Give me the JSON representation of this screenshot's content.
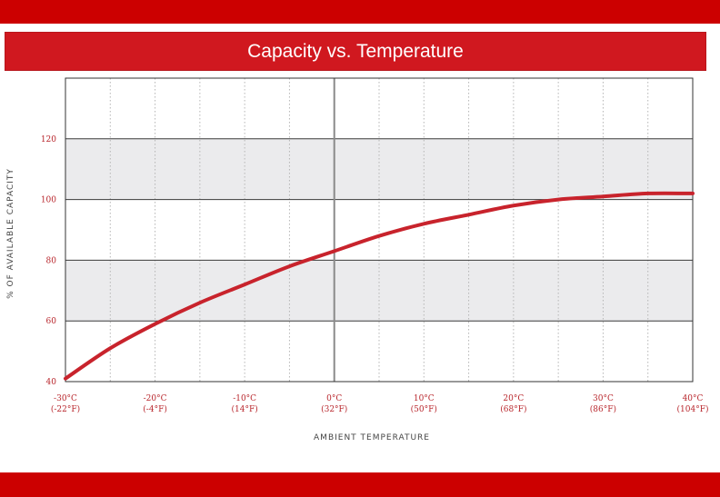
{
  "title": "Capacity vs. Temperature",
  "colors": {
    "band": "#cc0000",
    "title_bar": "#d0181f",
    "curve": "#c8232c",
    "tick_label": "#b8262c",
    "shade": "#ebebed"
  },
  "chart_data": {
    "type": "line",
    "title": "Capacity vs. Temperature",
    "xlabel": "AMBIENT TEMPERATURE",
    "ylabel": "% OF AVAILABLE CAPACITY",
    "xlim": [
      -30,
      40
    ],
    "ylim": [
      40,
      140
    ],
    "x_ticks": [
      {
        "value": -30,
        "c": "-30°C",
        "f": "(-22°F)"
      },
      {
        "value": -20,
        "c": "-20°C",
        "f": "(-4°F)"
      },
      {
        "value": -10,
        "c": "-10°C",
        "f": "(14°F)"
      },
      {
        "value": 0,
        "c": "0°C",
        "f": "(32°F)"
      },
      {
        "value": 10,
        "c": "10°C",
        "f": "(50°F)"
      },
      {
        "value": 20,
        "c": "20°C",
        "f": "(68°F)"
      },
      {
        "value": 30,
        "c": "30°C",
        "f": "(86°F)"
      },
      {
        "value": 40,
        "c": "40°C",
        "f": "(104°F)"
      }
    ],
    "y_ticks": [
      40,
      60,
      80,
      100,
      120
    ],
    "shaded_bands": [
      [
        60,
        80
      ],
      [
        100,
        120
      ]
    ],
    "grid": true,
    "series": [
      {
        "x": [
          -30,
          -25,
          -20,
          -15,
          -10,
          -5,
          0,
          5,
          10,
          15,
          20,
          25,
          30,
          35,
          40
        ],
        "y": [
          41,
          51,
          59,
          66,
          72,
          78,
          83,
          88,
          92,
          95,
          98,
          100,
          101,
          102,
          102
        ]
      }
    ]
  }
}
